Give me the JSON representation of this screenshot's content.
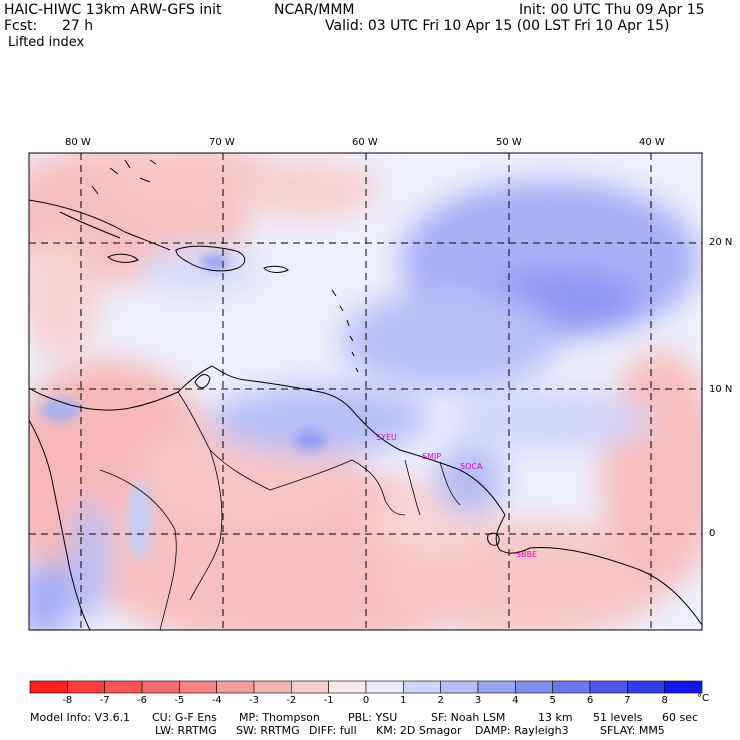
{
  "header": {
    "model": "HAIC-HIWC 13km ARW-GFS init",
    "org": "NCAR/MMM",
    "init": "Init: 00 UTC Thu 09 Apr 15",
    "fcst_label": "Fcst:",
    "fcst_value": "27 h",
    "valid": "Valid: 03 UTC Fri 10 Apr 15 (00 LST Fri 10 Apr 15)",
    "field": "Lifted index"
  },
  "map": {
    "lon_labels": [
      "80 W",
      "70 W",
      "60 W",
      "50 W",
      "40 W"
    ],
    "lat_labels": [
      "20 N",
      "10 N",
      "0"
    ],
    "stations": [
      "SYEU",
      "SMJP",
      "SOCA",
      "SBBE"
    ]
  },
  "colorbar": {
    "labels": [
      "-8",
      "-7",
      "-6",
      "-5",
      "-4",
      "-3",
      "-2",
      "-1",
      "0",
      "1",
      "2",
      "3",
      "4",
      "5",
      "6",
      "7",
      "8"
    ],
    "unit": "°C",
    "colors": [
      "#ff1e1e",
      "#ff3c3c",
      "#fc5353",
      "#f96a6a",
      "#f78282",
      "#f69b9b",
      "#f5b4b4",
      "#f6cccc",
      "#fbe8e8",
      "#eaecfd",
      "#cfd4fb",
      "#b5bcf7",
      "#9ca5f3",
      "#838ef1",
      "#6a76ee",
      "#4f59ef",
      "#323cef",
      "#1018ee"
    ]
  },
  "footer": {
    "line1": [
      "Model Info: V3.6.1",
      "CU: G-F Ens",
      "MP: Thompson",
      "PBL: YSU",
      "SF: Noah LSM",
      "13 km",
      "51 levels",
      "60 sec"
    ],
    "line2": [
      "LW: RRTMG",
      "SW: RRTMG",
      "DIFF: full",
      "KM: 2D Smagor",
      "DAMP: Rayleigh3",
      "SFLAY: MM5"
    ]
  }
}
